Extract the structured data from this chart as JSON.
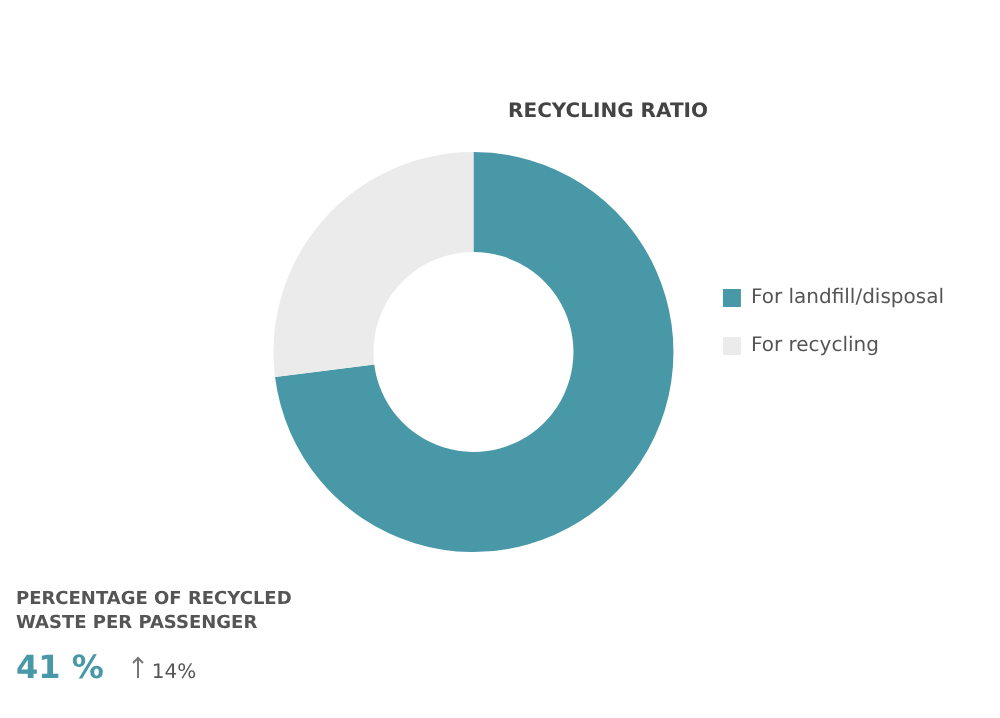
{
  "chart_data": {
    "type": "donut",
    "title": "RECYCLING RATIO",
    "categories": [
      "For landfill/disposal",
      "For recycling"
    ],
    "values": [
      73,
      27
    ],
    "colors": [
      "#4898a8",
      "#ebebeb"
    ],
    "legend": "right",
    "annotations": [
      "PERCENTAGE OF RECYCLED WASTE PER PASSENGER",
      "41 %",
      "14%"
    ]
  }
}
